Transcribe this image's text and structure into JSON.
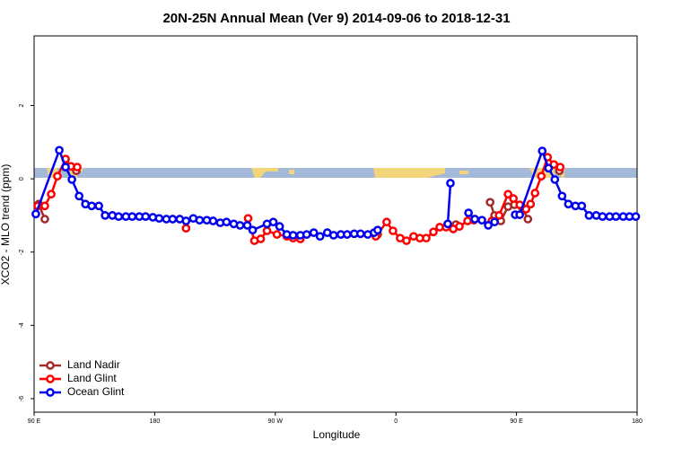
{
  "chart_data": {
    "type": "line",
    "title": "20N-25N Annual Mean (Ver 9)   2014-09-06 to 2018-12-31",
    "x_label": "Longitude",
    "y_label": "XCO2 - MLO trend (ppm)",
    "xlim": [
      90,
      540
    ],
    "ylim": [
      -6.37,
      3.9
    ],
    "xticks": [
      {
        "value": 90,
        "label": "90 E"
      },
      180,
      {
        "value": 270,
        "label": "90 W"
      },
      {
        "value": 360,
        "label": "0"
      },
      {
        "value": 450,
        "label": "90 E"
      },
      {
        "value": 540,
        "label": "180"
      }
    ],
    "yticks": [
      -6,
      -4,
      -2,
      0,
      2
    ],
    "legend": "bottom-left",
    "series": [
      {
        "name": "Land Nadir",
        "color": "#a52a2a",
        "x": [
          93.4,
          98,
          null,
          121.5,
          null,
          346.4,
          null,
          404.8,
          null,
          430.3,
          433.6,
          438.3,
          443.7,
          448.4,
          453.8,
          458.5,
          null,
          482
        ],
        "values": [
          -0.69,
          -1.1,
          null,
          0.22,
          null,
          -1.52,
          null,
          -1.25,
          null,
          -0.64,
          -1.0,
          -1.15,
          -0.76,
          -0.71,
          -0.76,
          -1.1,
          null,
          0.22
        ]
      },
      {
        "name": "Land Glint",
        "color": "#ff0000",
        "x": [
          92.7,
          98,
          102.8,
          107.4,
          113.5,
          117.5,
          122.2,
          null,
          203.4,
          null,
          249.7,
          254.4,
          259.1,
          263.8,
          271.2,
          278.6,
          283.3,
          288.7,
          null,
          345,
          353.1,
          357.8,
          363.2,
          367.9,
          373.2,
          377.9,
          382.6,
          388,
          392.7,
          397.4,
          402.8,
          407.4,
          413.5,
          418.2,
          null,
          431.6,
          437,
          443.7,
          447.7,
          452.4,
          457.1,
          460.5,
          463.8,
          468.5,
          473.2,
          477.9,
          482.6
        ],
        "values": [
          -0.74,
          -0.74,
          -0.42,
          0.07,
          0.54,
          0.34,
          0.32,
          null,
          -1.35,
          null,
          -1.08,
          -1.69,
          -1.64,
          -1.42,
          -1.52,
          -1.57,
          -1.62,
          -1.64,
          null,
          -1.57,
          -1.18,
          -1.42,
          -1.62,
          -1.69,
          -1.57,
          -1.62,
          -1.62,
          -1.45,
          -1.32,
          -1.32,
          -1.37,
          -1.3,
          -1.15,
          -1.13,
          null,
          -1.15,
          -1.0,
          -0.42,
          -0.54,
          -0.71,
          -0.83,
          -0.69,
          -0.39,
          0.07,
          0.59,
          0.39,
          0.32
        ]
      },
      {
        "name": "Ocean Glint",
        "color": "#0000ee",
        "x": [
          91.3,
          108.8,
          113.5,
          118.2,
          123.6,
          128.3,
          133,
          138.3,
          143,
          148.4,
          153.1,
          158.5,
          163.2,
          168.5,
          173.2,
          178.6,
          183.3,
          188.7,
          193.4,
          198.7,
          203.4,
          208.8,
          213.5,
          218.9,
          223.6,
          228.9,
          233.6,
          239,
          243.7,
          249.1,
          253.1,
          263.8,
          268.5,
          273.2,
          278.6,
          283.3,
          288.7,
          293.4,
          298.7,
          303.4,
          308.8,
          313.5,
          318.9,
          323.6,
          328.9,
          333.6,
          339,
          343.7,
          346.4,
          null,
          398.7,
          400.7,
          null,
          414.2,
          418.9,
          424.2,
          428.9,
          433.6,
          null,
          449,
          452.4,
          469.2,
          473.9,
          478.6,
          484,
          488.7,
          494,
          498.7,
          504.1,
          509.5,
          514.2,
          519.5,
          524.2,
          529.6,
          534.3,
          539
        ],
        "values": [
          -0.96,
          0.78,
          0.32,
          -0.02,
          -0.47,
          -0.69,
          -0.74,
          -0.74,
          -1.0,
          -1.0,
          -1.03,
          -1.03,
          -1.03,
          -1.03,
          -1.03,
          -1.05,
          -1.08,
          -1.1,
          -1.1,
          -1.1,
          -1.15,
          -1.08,
          -1.13,
          -1.13,
          -1.15,
          -1.2,
          -1.18,
          -1.23,
          -1.27,
          -1.27,
          -1.4,
          -1.23,
          -1.18,
          -1.3,
          -1.52,
          -1.54,
          -1.54,
          -1.52,
          -1.47,
          -1.57,
          -1.47,
          -1.54,
          -1.52,
          -1.52,
          -1.5,
          -1.5,
          -1.52,
          -1.47,
          -1.4,
          null,
          -1.23,
          -0.12,
          null,
          -0.93,
          -1.1,
          -1.13,
          -1.27,
          -1.18,
          null,
          -0.98,
          -0.98,
          0.76,
          0.29,
          -0.02,
          -0.47,
          -0.69,
          -0.74,
          -0.74,
          -1.0,
          -1.0,
          -1.03,
          -1.03,
          -1.03,
          -1.03,
          -1.03,
          -1.03
        ]
      }
    ]
  }
}
